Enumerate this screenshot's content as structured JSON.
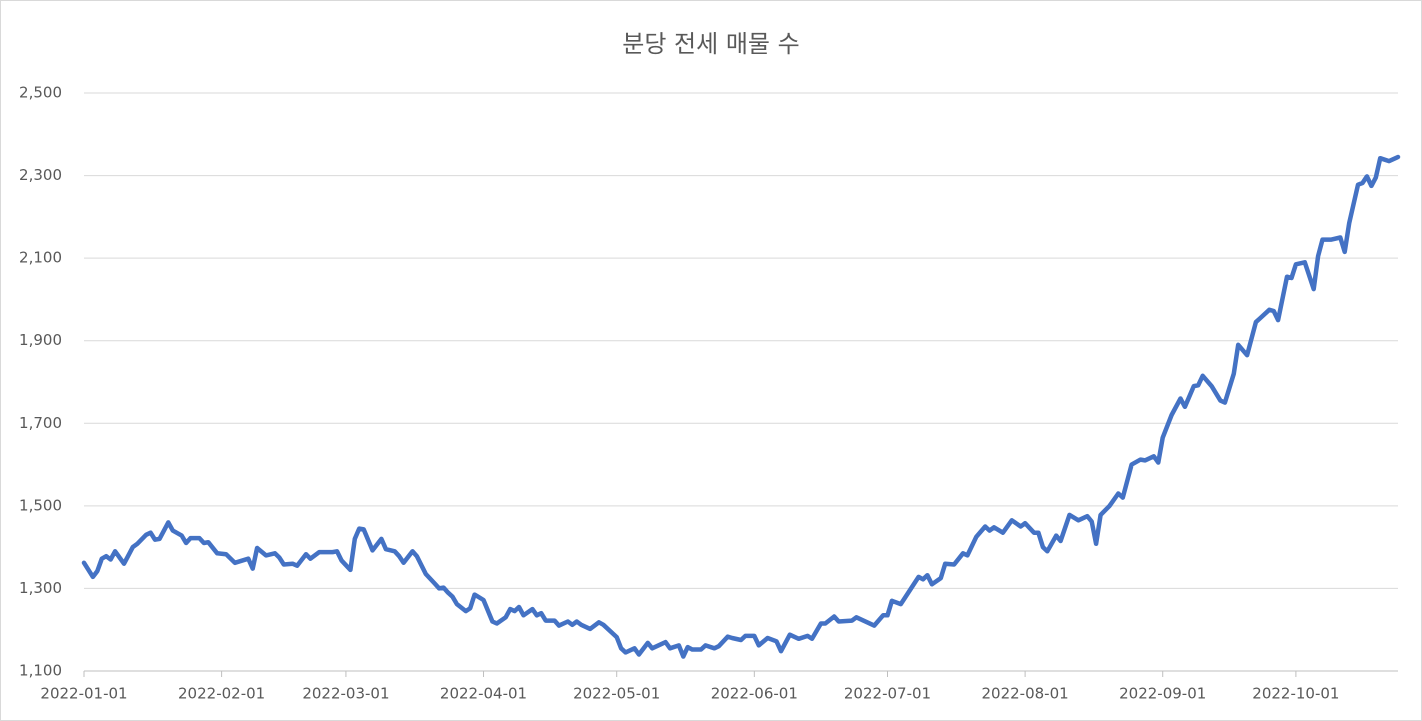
{
  "chart_data": {
    "type": "line",
    "title": "분당 전세 매물 수",
    "x": [
      "2022-01-01",
      "2022-01-03",
      "2022-01-04",
      "2022-01-05",
      "2022-01-06",
      "2022-01-07",
      "2022-01-08",
      "2022-01-10",
      "2022-01-12",
      "2022-01-13",
      "2022-01-15",
      "2022-01-16",
      "2022-01-17",
      "2022-01-18",
      "2022-01-20",
      "2022-01-21",
      "2022-01-23",
      "2022-01-24",
      "2022-01-25",
      "2022-01-27",
      "2022-01-28",
      "2022-01-29",
      "2022-01-31",
      "2022-02-02",
      "2022-02-04",
      "2022-02-07",
      "2022-02-08",
      "2022-02-09",
      "2022-02-11",
      "2022-02-13",
      "2022-02-14",
      "2022-02-15",
      "2022-02-17",
      "2022-02-18",
      "2022-02-20",
      "2022-02-21",
      "2022-02-23",
      "2022-02-26",
      "2022-02-27",
      "2022-02-28",
      "2022-03-02",
      "2022-03-03",
      "2022-03-04",
      "2022-03-05",
      "2022-03-07",
      "2022-03-09",
      "2022-03-10",
      "2022-03-12",
      "2022-03-13",
      "2022-03-14",
      "2022-03-16",
      "2022-03-17",
      "2022-03-19",
      "2022-03-21",
      "2022-03-22",
      "2022-03-23",
      "2022-03-24",
      "2022-03-25",
      "2022-03-26",
      "2022-03-28",
      "2022-03-29",
      "2022-03-30",
      "2022-04-01",
      "2022-04-03",
      "2022-04-04",
      "2022-04-06",
      "2022-04-07",
      "2022-04-08",
      "2022-04-09",
      "2022-04-10",
      "2022-04-12",
      "2022-04-13",
      "2022-04-14",
      "2022-04-15",
      "2022-04-17",
      "2022-04-18",
      "2022-04-20",
      "2022-04-21",
      "2022-04-22",
      "2022-04-23",
      "2022-04-25",
      "2022-04-27",
      "2022-04-28",
      "2022-05-01",
      "2022-05-02",
      "2022-05-03",
      "2022-05-05",
      "2022-05-06",
      "2022-05-08",
      "2022-05-09",
      "2022-05-11",
      "2022-05-12",
      "2022-05-13",
      "2022-05-15",
      "2022-05-16",
      "2022-05-17",
      "2022-05-18",
      "2022-05-20",
      "2022-05-21",
      "2022-05-23",
      "2022-05-24",
      "2022-05-26",
      "2022-05-27",
      "2022-05-29",
      "2022-05-30",
      "2022-06-01",
      "2022-06-02",
      "2022-06-04",
      "2022-06-06",
      "2022-06-07",
      "2022-06-09",
      "2022-06-11",
      "2022-06-13",
      "2022-06-14",
      "2022-06-16",
      "2022-06-17",
      "2022-06-19",
      "2022-06-20",
      "2022-06-23",
      "2022-06-24",
      "2022-06-28",
      "2022-06-30",
      "2022-07-01",
      "2022-07-02",
      "2022-07-04",
      "2022-07-06",
      "2022-07-08",
      "2022-07-09",
      "2022-07-10",
      "2022-07-11",
      "2022-07-13",
      "2022-07-14",
      "2022-07-16",
      "2022-07-18",
      "2022-07-19",
      "2022-07-21",
      "2022-07-23",
      "2022-07-24",
      "2022-07-25",
      "2022-07-27",
      "2022-07-29",
      "2022-07-31",
      "2022-08-01",
      "2022-08-03",
      "2022-08-04",
      "2022-08-05",
      "2022-08-06",
      "2022-08-08",
      "2022-08-09",
      "2022-08-11",
      "2022-08-13",
      "2022-08-15",
      "2022-08-16",
      "2022-08-17",
      "2022-08-18",
      "2022-08-20",
      "2022-08-22",
      "2022-08-23",
      "2022-08-25",
      "2022-08-27",
      "2022-08-28",
      "2022-08-30",
      "2022-08-31",
      "2022-09-01",
      "2022-09-03",
      "2022-09-05",
      "2022-09-06",
      "2022-09-08",
      "2022-09-09",
      "2022-09-10",
      "2022-09-12",
      "2022-09-14",
      "2022-09-15",
      "2022-09-17",
      "2022-09-18",
      "2022-09-20",
      "2022-09-22",
      "2022-09-23",
      "2022-09-25",
      "2022-09-26",
      "2022-09-27",
      "2022-09-29",
      "2022-09-30",
      "2022-10-01",
      "2022-10-03",
      "2022-10-05",
      "2022-10-06",
      "2022-10-07",
      "2022-10-09",
      "2022-10-11",
      "2022-10-12",
      "2022-10-13",
      "2022-10-15",
      "2022-10-16",
      "2022-10-17",
      "2022-10-18",
      "2022-10-19",
      "2022-10-20",
      "2022-10-22",
      "2022-10-24"
    ],
    "series": [
      {
        "color": "#4472c4",
        "values": [
          1362,
          1328,
          1342,
          1372,
          1378,
          1370,
          1390,
          1360,
          1400,
          1408,
          1430,
          1435,
          1418,
          1420,
          1460,
          1440,
          1428,
          1410,
          1422,
          1422,
          1410,
          1412,
          1385,
          1383,
          1362,
          1372,
          1348,
          1398,
          1380,
          1385,
          1375,
          1358,
          1360,
          1355,
          1383,
          1372,
          1388,
          1388,
          1390,
          1368,
          1345,
          1420,
          1445,
          1443,
          1392,
          1420,
          1395,
          1390,
          1378,
          1362,
          1390,
          1378,
          1335,
          1312,
          1300,
          1302,
          1290,
          1280,
          1262,
          1245,
          1252,
          1285,
          1272,
          1220,
          1215,
          1230,
          1250,
          1245,
          1255,
          1235,
          1250,
          1235,
          1240,
          1222,
          1222,
          1210,
          1220,
          1212,
          1220,
          1212,
          1202,
          1218,
          1212,
          1182,
          1155,
          1145,
          1155,
          1140,
          1168,
          1155,
          1165,
          1170,
          1155,
          1162,
          1135,
          1158,
          1152,
          1152,
          1162,
          1155,
          1160,
          1183,
          1180,
          1175,
          1185,
          1185,
          1162,
          1180,
          1172,
          1148,
          1188,
          1178,
          1185,
          1178,
          1215,
          1215,
          1232,
          1220,
          1222,
          1230,
          1210,
          1235,
          1235,
          1270,
          1262,
          1295,
          1328,
          1322,
          1332,
          1310,
          1325,
          1360,
          1358,
          1385,
          1380,
          1425,
          1450,
          1440,
          1448,
          1435,
          1465,
          1450,
          1458,
          1435,
          1435,
          1400,
          1390,
          1428,
          1415,
          1478,
          1465,
          1475,
          1462,
          1408,
          1478,
          1500,
          1530,
          1520,
          1600,
          1612,
          1610,
          1620,
          1605,
          1665,
          1720,
          1760,
          1740,
          1790,
          1792,
          1815,
          1790,
          1755,
          1750,
          1820,
          1890,
          1865,
          1945,
          1955,
          1975,
          1972,
          1950,
          2055,
          2052,
          2085,
          2090,
          2025,
          2105,
          2145,
          2145,
          2150,
          2115,
          2185,
          2278,
          2282,
          2298,
          2275,
          2295,
          2342,
          2335,
          2345
        ]
      }
    ],
    "xlim": [
      "2022-01-01",
      "2022-10-24"
    ],
    "xticks": [
      "2022-01-01",
      "2022-02-01",
      "2022-03-01",
      "2022-04-01",
      "2022-05-01",
      "2022-06-01",
      "2022-07-01",
      "2022-08-01",
      "2022-09-01",
      "2022-10-01"
    ],
    "ylim": [
      1100,
      2500
    ],
    "yticks": [
      {
        "value": 1100,
        "label": "1,100"
      },
      {
        "value": 1300,
        "label": "1,300"
      },
      {
        "value": 1500,
        "label": "1,500"
      },
      {
        "value": 1700,
        "label": "1,700"
      },
      {
        "value": 1900,
        "label": "1,900"
      },
      {
        "value": 2100,
        "label": "2,100"
      },
      {
        "value": 2300,
        "label": "2,300"
      },
      {
        "value": 2500,
        "label": "2,500"
      }
    ],
    "grid": true
  }
}
